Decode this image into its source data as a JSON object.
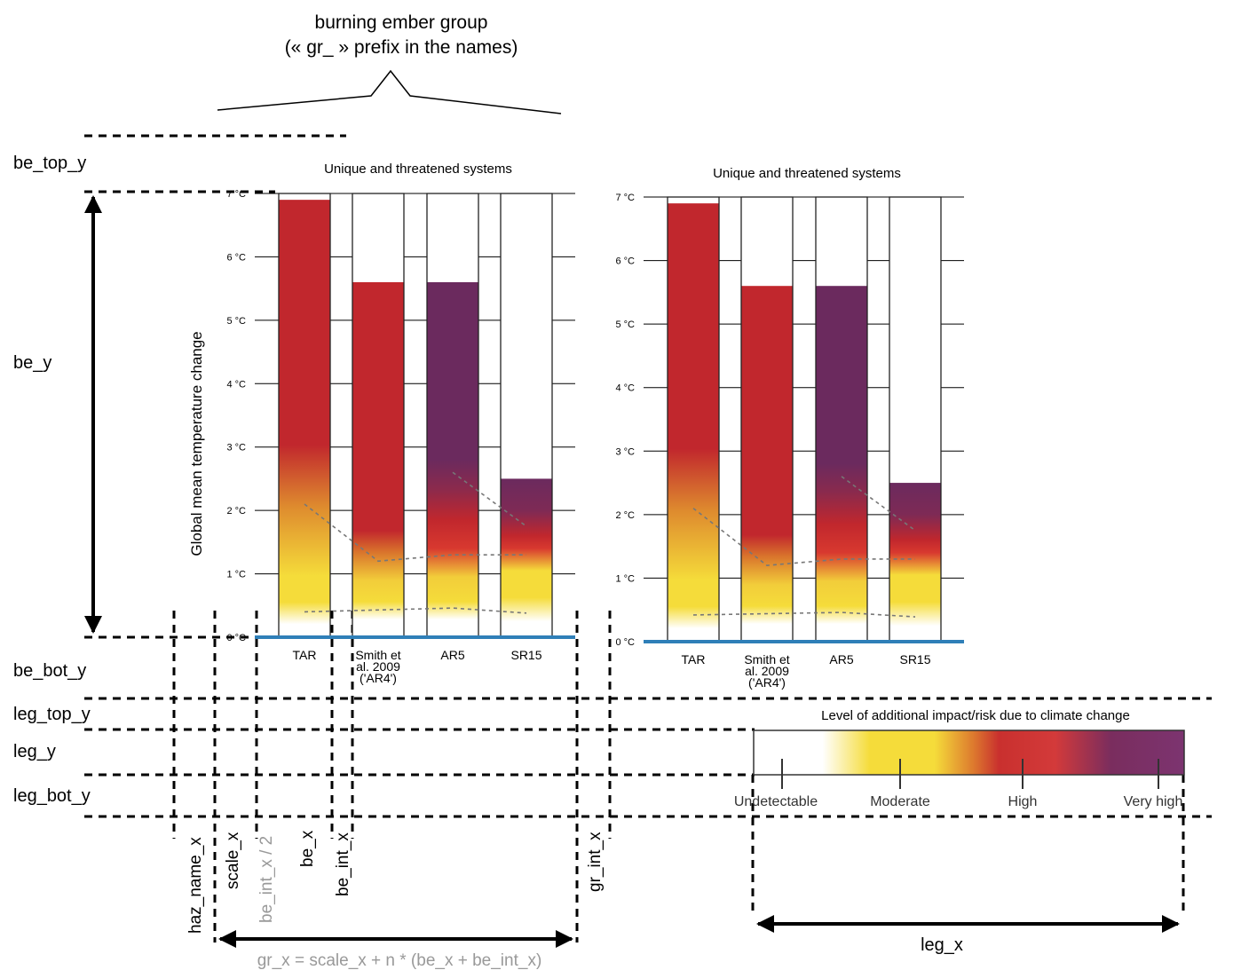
{
  "header": {
    "title_line1": "burning ember group",
    "title_line2": "(« gr_ » prefix in the names)"
  },
  "y_labels": {
    "be_top_y": "be_top_y",
    "be_y": "be_y",
    "be_bot_y": "be_bot_y",
    "leg_top_y": "leg_top_y",
    "leg_y": "leg_y",
    "leg_bot_y": "leg_bot_y"
  },
  "x_labels": {
    "haz_name_x": "haz_name_x",
    "scale_x": "scale_x",
    "half_be_int_x": "be_int_x / 2",
    "be_x": "be_x",
    "be_int_x": "be_int_x",
    "gr_int_x": "gr_int_x",
    "gr_x_formula": "gr_x = scale_x + n * (be_x + be_int_x)",
    "leg_x": "leg_x"
  },
  "chart_data": [
    {
      "type": "burning_ember",
      "title": "Unique and threatened systems",
      "ylabel": "Global mean temperature change",
      "ylim": [
        0,
        7
      ],
      "y_tick_labels": [
        "0 °C",
        "1 °C",
        "2 °C",
        "3 °C",
        "4 °C",
        "5 °C",
        "6 °C",
        "7 °C"
      ],
      "embers": [
        {
          "name": "TAR",
          "label_lines": [
            "TAR"
          ],
          "top": 6.9
        },
        {
          "name": "Smith et al. 2009 ('AR4')",
          "label_lines": [
            "Smith et",
            "al. 2009",
            "('AR4')"
          ],
          "top": 5.6
        },
        {
          "name": "AR5",
          "label_lines": [
            "AR5"
          ],
          "top": 5.6
        },
        {
          "name": "SR15",
          "label_lines": [
            "SR15"
          ],
          "top": 2.5
        }
      ]
    },
    {
      "type": "burning_ember",
      "title": "Unique and threatened systems",
      "ylabel": "",
      "ylim": [
        0,
        7
      ],
      "y_tick_labels": [
        "0 °C",
        "1 °C",
        "2 °C",
        "3 °C",
        "4 °C",
        "5 °C",
        "6 °C",
        "7 °C"
      ],
      "embers": [
        {
          "name": "TAR",
          "label_lines": [
            "TAR"
          ],
          "top": 6.9
        },
        {
          "name": "Smith et al. 2009 ('AR4')",
          "label_lines": [
            "Smith et",
            "al. 2009",
            "('AR4')"
          ],
          "top": 5.6
        },
        {
          "name": "AR5",
          "label_lines": [
            "AR5"
          ],
          "top": 5.6
        },
        {
          "name": "SR15",
          "label_lines": [
            "SR15"
          ],
          "top": 2.5
        }
      ]
    }
  ],
  "legend": {
    "title": "Level of additional impact/risk due to climate change",
    "levels": [
      "Undetectable",
      "Moderate",
      "High",
      "Very high"
    ]
  },
  "colors": {
    "white": "#ffffff",
    "yellow": "#f5dc3a",
    "red": "#c1272d",
    "purple": "#6b2a5e",
    "axis_blue": "#2f7fb8",
    "formula_gray": "#999999"
  }
}
